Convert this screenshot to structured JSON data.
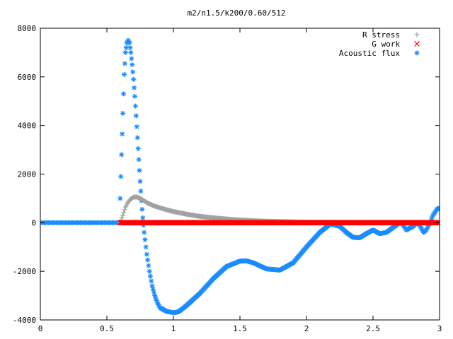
{
  "chart_data": {
    "type": "scatter",
    "title": "m2/n1.5/k200/0.60/512",
    "xlabel": "",
    "ylabel": "",
    "xlim": [
      0,
      3
    ],
    "ylim": [
      -4000,
      8000
    ],
    "x_ticks": [
      0,
      0.5,
      1,
      1.5,
      2,
      2.5,
      3
    ],
    "x_tick_labels": [
      "0",
      "0.5",
      "1",
      "1.5",
      "2",
      "2.5",
      "3"
    ],
    "y_ticks": [
      -4000,
      -2000,
      0,
      2000,
      4000,
      6000,
      8000
    ],
    "y_tick_labels": [
      "-4000",
      "-2000",
      "0",
      "2000",
      "4000",
      "6000",
      "8000"
    ],
    "grid": false,
    "legend_position": "top-right",
    "series": [
      {
        "name": "R stress",
        "marker": "+",
        "color": "#a0a0a0",
        "x": [
          0.6,
          0.62,
          0.64,
          0.66,
          0.68,
          0.7,
          0.72,
          0.74,
          0.76,
          0.78,
          0.8,
          0.85,
          0.9,
          0.95,
          1.0,
          1.1,
          1.2,
          1.3,
          1.4,
          1.5,
          1.6,
          1.7,
          1.8,
          1.9,
          2.0,
          2.2,
          2.4,
          2.6,
          2.8,
          3.0
        ],
        "y": [
          0,
          300,
          650,
          850,
          980,
          1050,
          1060,
          1030,
          970,
          900,
          830,
          700,
          610,
          530,
          460,
          350,
          260,
          200,
          150,
          110,
          80,
          60,
          45,
          30,
          20,
          12,
          8,
          5,
          3,
          2
        ]
      },
      {
        "name": "G work",
        "marker": "x",
        "color": "#ff0000",
        "x": [
          0.6,
          1.0,
          1.5,
          2.0,
          2.5,
          3.0
        ],
        "y": [
          0,
          0,
          0,
          0,
          0,
          0
        ]
      },
      {
        "name": "Acoustic flux",
        "marker": "*",
        "color": "#1a8cff",
        "x": [
          0.6,
          0.61,
          0.62,
          0.63,
          0.64,
          0.65,
          0.66,
          0.67,
          0.68,
          0.69,
          0.7,
          0.71,
          0.72,
          0.73,
          0.74,
          0.75,
          0.76,
          0.77,
          0.78,
          0.8,
          0.82,
          0.84,
          0.86,
          0.88,
          0.9,
          0.95,
          1.0,
          1.03,
          1.05,
          1.1,
          1.2,
          1.3,
          1.4,
          1.5,
          1.55,
          1.6,
          1.7,
          1.8,
          1.9,
          2.0,
          2.1,
          2.18,
          2.25,
          2.3,
          2.35,
          2.4,
          2.45,
          2.5,
          2.55,
          2.6,
          2.65,
          2.7,
          2.72,
          2.75,
          2.8,
          2.83,
          2.85,
          2.88,
          2.9,
          2.93,
          2.95,
          2.98,
          3.0
        ],
        "y": [
          1000,
          2800,
          4500,
          6100,
          7000,
          7400,
          7500,
          7400,
          7000,
          6500,
          5900,
          5200,
          4400,
          3500,
          2600,
          1700,
          900,
          200,
          -400,
          -1300,
          -2000,
          -2600,
          -3000,
          -3300,
          -3500,
          -3650,
          -3700,
          -3680,
          -3620,
          -3400,
          -2900,
          -2300,
          -1800,
          -1580,
          -1570,
          -1650,
          -1900,
          -1950,
          -1650,
          -1000,
          -400,
          -50,
          -150,
          -400,
          -600,
          -620,
          -450,
          -300,
          -450,
          -400,
          -200,
          0,
          -50,
          -300,
          -150,
          0,
          -100,
          -400,
          -300,
          0,
          300,
          550,
          600
        ]
      }
    ]
  }
}
